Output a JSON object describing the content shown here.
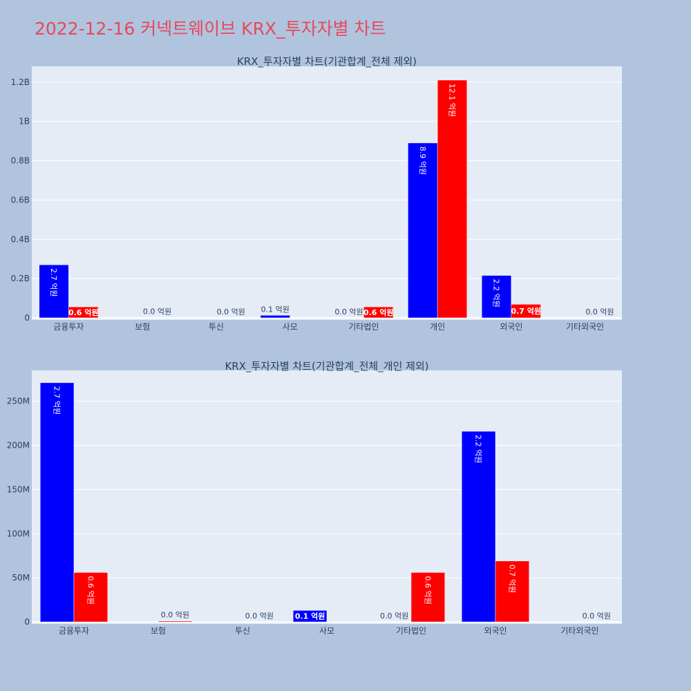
{
  "title": "2022-12-16 커넥트웨이브 KRX_투자자별 차트",
  "colors": {
    "buy": "#0000ff",
    "sell": "#ff0000",
    "plot_bg": "#e5ecf6",
    "page_bg": "#b0c4de"
  },
  "chart_data": [
    {
      "type": "bar",
      "title": "KRX_투자자별 차트(기관합계_전체 제외)",
      "categories": [
        "금융투자",
        "보험",
        "투신",
        "사모",
        "기타법인",
        "개인",
        "외국인",
        "기타외국인"
      ],
      "series": [
        {
          "values": [
            270000000,
            0,
            0,
            13000000,
            0,
            890000000,
            216000000,
            0
          ],
          "labels": [
            "2.7 억원",
            "",
            "",
            "0.1 억원",
            "0.0 억원",
            "8.9 억원",
            "2.2 억원",
            ""
          ]
        },
        {
          "values": [
            56000000,
            1000000,
            0,
            0,
            56000000,
            1210000000,
            69000000,
            0
          ],
          "labels": [
            "0.6 억원",
            "0.0 억원",
            "0.0 억원",
            "",
            "0.6 억원",
            "12.1 억원",
            "0.7 억원",
            "0.0 억원"
          ]
        }
      ],
      "ylim": [
        0,
        1280000000
      ],
      "yticks": [
        0,
        200000000,
        400000000,
        600000000,
        800000000,
        1000000000,
        1200000000
      ],
      "ytick_labels": [
        "0",
        "0.2B",
        "0.4B",
        "0.6B",
        "0.8B",
        "1B",
        "1.2B"
      ],
      "grid": true
    },
    {
      "type": "bar",
      "title": "KRX_투자자별 차트(기관합계_전체_개인 제외)",
      "categories": [
        "금융투자",
        "보험",
        "투신",
        "사모",
        "기타법인",
        "외국인",
        "기타외국인"
      ],
      "series": [
        {
          "values": [
            271000000,
            0,
            0,
            13000000,
            0,
            216000000,
            0
          ],
          "labels": [
            "2.7 억원",
            "",
            "",
            "0.1 억원",
            "0.0 억원",
            "2.2 억원",
            ""
          ]
        },
        {
          "values": [
            56000000,
            1000000,
            0,
            0,
            56000000,
            69000000,
            0
          ],
          "labels": [
            "0.6 억원",
            "0.0 억원",
            "0.0 억원",
            "",
            "0.6 억원",
            "0.7 억원",
            "0.0 억원"
          ]
        }
      ],
      "ylim": [
        0,
        285000000
      ],
      "yticks": [
        0,
        50000000,
        100000000,
        150000000,
        200000000,
        250000000
      ],
      "ytick_labels": [
        "0",
        "50M",
        "100M",
        "150M",
        "200M",
        "250M"
      ],
      "grid": true
    }
  ]
}
